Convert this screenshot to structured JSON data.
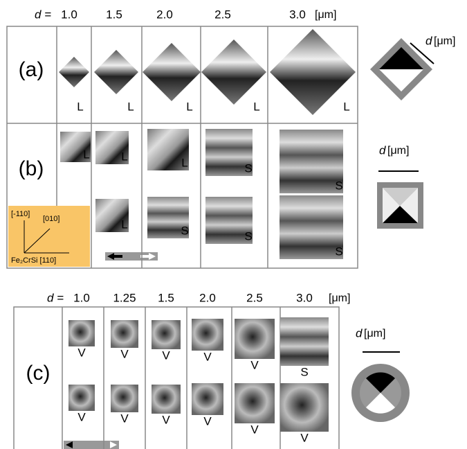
{
  "panel_ab": {
    "d_label": "d =",
    "sizes": [
      "1.0",
      "1.5",
      "2.0",
      "2.5",
      "3.0"
    ],
    "unit": "[μm]",
    "rows": [
      {
        "label": "(a)",
        "states": [
          [
            "L"
          ],
          [
            "L"
          ],
          [
            "L"
          ],
          [
            "L"
          ],
          [
            "L"
          ]
        ]
      },
      {
        "label": "(b)",
        "states": [
          [
            "L"
          ],
          [
            "L",
            "L"
          ],
          [
            "L",
            "S"
          ],
          [
            "S",
            "S"
          ],
          [
            "S",
            "S"
          ]
        ]
      }
    ],
    "axes": {
      "y": "[-110]",
      "diag": "[010]",
      "x": "Fe₂CrSi [110]"
    }
  },
  "schematic_label": {
    "d": "d",
    "unit": "[μm]"
  },
  "panel_c": {
    "d_label": "d =",
    "sizes": [
      "1.0",
      "1.25",
      "1.5",
      "2.0",
      "2.5",
      "3.0"
    ],
    "unit": "[μm]",
    "label": "(c)",
    "states": [
      [
        "V",
        "V"
      ],
      [
        "V",
        "V"
      ],
      [
        "V",
        "V"
      ],
      [
        "V",
        "V"
      ],
      [
        "V",
        "V"
      ],
      [
        "S",
        "V"
      ]
    ]
  }
}
